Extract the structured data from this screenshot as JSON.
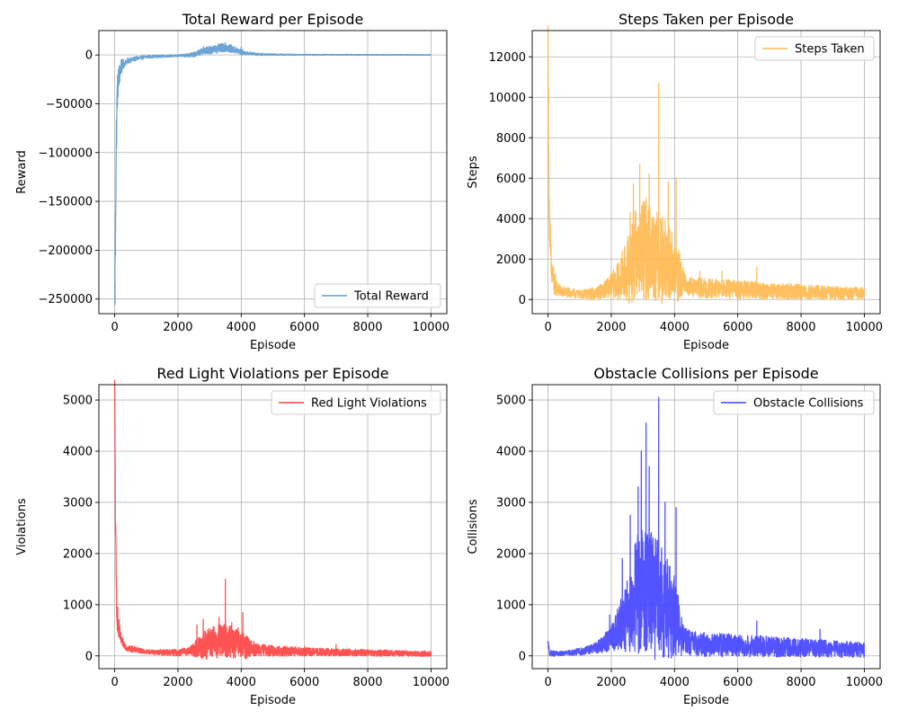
{
  "chart_data": [
    {
      "type": "line",
      "title": "Total Reward per Episode",
      "xlabel": "Episode",
      "ylabel": "Reward",
      "xlim": [
        -500,
        10500
      ],
      "ylim": [
        -265000,
        25000
      ],
      "xticks": [
        0,
        2000,
        4000,
        6000,
        8000,
        10000
      ],
      "xtick_labels": [
        "0",
        "2000",
        "4000",
        "6000",
        "8000",
        "10000"
      ],
      "yticks": [
        0,
        -50000,
        -100000,
        -150000,
        -200000,
        -250000
      ],
      "ytick_labels": [
        "0",
        "−50000",
        "−100000",
        "−150000",
        "−200000",
        "−250000"
      ],
      "grid": true,
      "legend_position": "lower-right",
      "series": [
        {
          "name": "Total Reward",
          "color": "#5b9bd0",
          "profile": {
            "points": [
              [
                0,
                -250000
              ],
              [
                15,
                -200000
              ],
              [
                30,
                -150000
              ],
              [
                50,
                -90000
              ],
              [
                80,
                -40000
              ],
              [
                120,
                -25000
              ],
              [
                200,
                -12000
              ],
              [
                400,
                -6000
              ],
              [
                700,
                -3500
              ],
              [
                1000,
                -2000
              ],
              [
                1500,
                -1200
              ],
              [
                2000,
                -800
              ],
              [
                2500,
                200
              ],
              [
                2800,
                4000
              ],
              [
                3000,
                5000
              ],
              [
                3200,
                6000
              ],
              [
                3500,
                8000
              ],
              [
                3800,
                5000
              ],
              [
                4100,
                2000
              ],
              [
                4500,
                800
              ],
              [
                5000,
                400
              ],
              [
                6000,
                200
              ],
              [
                7000,
                150
              ],
              [
                8000,
                100
              ],
              [
                9000,
                80
              ],
              [
                10000,
                50
              ]
            ],
            "noise_amplitude": [
              [
                0,
                40000
              ],
              [
                100,
                15000
              ],
              [
                300,
                3000
              ],
              [
                1000,
                1500
              ],
              [
                2000,
                1000
              ],
              [
                2500,
                2500
              ],
              [
                3000,
                4000
              ],
              [
                3500,
                4500
              ],
              [
                4000,
                3000
              ],
              [
                4200,
                1500
              ],
              [
                5000,
                800
              ],
              [
                6000,
                500
              ],
              [
                10000,
                400
              ]
            ],
            "spikes": [
              [
                3500,
                12000
              ],
              [
                3000,
                9000
              ],
              [
                2800,
                8500
              ],
              [
                4000,
                8000
              ],
              [
                10,
                -255000
              ],
              [
                25,
                -205000
              ],
              [
                60,
                -75000
              ]
            ]
          }
        }
      ]
    },
    {
      "type": "line",
      "title": "Steps Taken per Episode",
      "xlabel": "Episode",
      "ylabel": "Steps",
      "xlim": [
        -500,
        10500
      ],
      "ylim": [
        -700,
        13300
      ],
      "xticks": [
        0,
        2000,
        4000,
        6000,
        8000,
        10000
      ],
      "xtick_labels": [
        "0",
        "2000",
        "4000",
        "6000",
        "8000",
        "10000"
      ],
      "yticks": [
        0,
        2000,
        4000,
        6000,
        8000,
        10000,
        12000
      ],
      "ytick_labels": [
        "0",
        "2000",
        "4000",
        "6000",
        "8000",
        "10000",
        "12000"
      ],
      "grid": true,
      "legend_position": "upper-right",
      "series": [
        {
          "name": "Steps Taken",
          "color": "#ffb84d",
          "profile": {
            "points": [
              [
                0,
                12800
              ],
              [
                10,
                10500
              ],
              [
                25,
                6500
              ],
              [
                50,
                3500
              ],
              [
                100,
                1500
              ],
              [
                200,
                700
              ],
              [
                400,
                400
              ],
              [
                1000,
                250
              ],
              [
                1500,
                300
              ],
              [
                1800,
                500
              ],
              [
                2000,
                700
              ],
              [
                2300,
                1000
              ],
              [
                2600,
                1700
              ],
              [
                2800,
                2300
              ],
              [
                3000,
                2500
              ],
              [
                3300,
                2300
              ],
              [
                3600,
                2000
              ],
              [
                4000,
                1600
              ],
              [
                4200,
                1000
              ],
              [
                4500,
                600
              ],
              [
                5000,
                550
              ],
              [
                6000,
                500
              ],
              [
                7000,
                420
              ],
              [
                8000,
                380
              ],
              [
                9000,
                330
              ],
              [
                10000,
                300
              ]
            ],
            "noise_amplitude": [
              [
                0,
                1500
              ],
              [
                300,
                300
              ],
              [
                1000,
                200
              ],
              [
                1800,
                400
              ],
              [
                2300,
                1000
              ],
              [
                2700,
                2200
              ],
              [
                3000,
                2500
              ],
              [
                3600,
                2200
              ],
              [
                4100,
                1500
              ],
              [
                4300,
                500
              ],
              [
                6000,
                450
              ],
              [
                10000,
                300
              ]
            ],
            "spikes": [
              [
                3500,
                10700
              ],
              [
                2900,
                6700
              ],
              [
                3200,
                6200
              ],
              [
                4050,
                6000
              ],
              [
                3800,
                5800
              ],
              [
                2700,
                5700
              ],
              [
                3100,
                5000
              ],
              [
                2600,
                4300
              ],
              [
                2350,
                2400
              ],
              [
                6600,
                1600
              ],
              [
                5500,
                1400
              ],
              [
                4800,
                1400
              ]
            ]
          }
        }
      ]
    },
    {
      "type": "line",
      "title": "Red Light Violations per Episode",
      "xlabel": "Episode",
      "ylabel": "Violations",
      "xlim": [
        -500,
        10500
      ],
      "ylim": [
        -250,
        5300
      ],
      "xticks": [
        0,
        2000,
        4000,
        6000,
        8000,
        10000
      ],
      "xtick_labels": [
        "0",
        "2000",
        "4000",
        "6000",
        "8000",
        "10000"
      ],
      "yticks": [
        0,
        1000,
        2000,
        3000,
        4000,
        5000
      ],
      "ytick_labels": [
        "0",
        "1000",
        "2000",
        "3000",
        "4000",
        "5000"
      ],
      "grid": true,
      "legend_position": "upper-right",
      "series": [
        {
          "name": "Red Light Violations",
          "color": "#ff4040",
          "profile": {
            "points": [
              [
                0,
                5100
              ],
              [
                10,
                4100
              ],
              [
                25,
                2500
              ],
              [
                50,
                1300
              ],
              [
                100,
                600
              ],
              [
                200,
                300
              ],
              [
                400,
                150
              ],
              [
                1000,
                80
              ],
              [
                2000,
                60
              ],
              [
                2500,
                120
              ],
              [
                3000,
                250
              ],
              [
                3500,
                300
              ],
              [
                4000,
                200
              ],
              [
                4500,
                120
              ],
              [
                5000,
                100
              ],
              [
                6000,
                80
              ],
              [
                7000,
                70
              ],
              [
                8000,
                60
              ],
              [
                9000,
                50
              ],
              [
                10000,
                40
              ]
            ],
            "noise_amplitude": [
              [
                0,
                500
              ],
              [
                200,
                80
              ],
              [
                1000,
                40
              ],
              [
                2400,
                80
              ],
              [
                2800,
                300
              ],
              [
                3500,
                350
              ],
              [
                4100,
                250
              ],
              [
                4500,
                120
              ],
              [
                6000,
                80
              ],
              [
                10000,
                50
              ]
            ],
            "spikes": [
              [
                3500,
                1500
              ],
              [
                4050,
                850
              ],
              [
                2800,
                720
              ],
              [
                3300,
                750
              ],
              [
                2600,
                600
              ],
              [
                3700,
                650
              ],
              [
                3900,
                550
              ],
              [
                7000,
                220
              ],
              [
                6000,
                180
              ],
              [
                5200,
                180
              ]
            ]
          }
        }
      ]
    },
    {
      "type": "line",
      "title": "Obstacle Collisions per Episode",
      "xlabel": "Episode",
      "ylabel": "Collisions",
      "xlim": [
        -500,
        10500
      ],
      "ylim": [
        -250,
        5300
      ],
      "xticks": [
        0,
        2000,
        4000,
        6000,
        8000,
        10000
      ],
      "xtick_labels": [
        "0",
        "2000",
        "4000",
        "6000",
        "8000",
        "10000"
      ],
      "yticks": [
        0,
        1000,
        2000,
        3000,
        4000,
        5000
      ],
      "ytick_labels": [
        "0",
        "1000",
        "2000",
        "3000",
        "4000",
        "5000"
      ],
      "grid": true,
      "legend_position": "upper-right",
      "series": [
        {
          "name": "Obstacle Collisions",
          "color": "#4040ff",
          "profile": {
            "points": [
              [
                0,
                250
              ],
              [
                50,
                50
              ],
              [
                300,
                40
              ],
              [
                1000,
                80
              ],
              [
                1500,
                150
              ],
              [
                1800,
                250
              ],
              [
                2000,
                350
              ],
              [
                2300,
                600
              ],
              [
                2600,
                900
              ],
              [
                2800,
                1200
              ],
              [
                3000,
                1300
              ],
              [
                3300,
                1200
              ],
              [
                3600,
                1000
              ],
              [
                4000,
                800
              ],
              [
                4200,
                400
              ],
              [
                4500,
                250
              ],
              [
                5000,
                220
              ],
              [
                6000,
                200
              ],
              [
                7000,
                180
              ],
              [
                8000,
                160
              ],
              [
                9000,
                140
              ],
              [
                10000,
                120
              ]
            ],
            "noise_amplitude": [
              [
                0,
                60
              ],
              [
                500,
                40
              ],
              [
                1500,
                100
              ],
              [
                2000,
                250
              ],
              [
                2400,
                600
              ],
              [
                2800,
                1200
              ],
              [
                3200,
                1300
              ],
              [
                3700,
                1100
              ],
              [
                4100,
                700
              ],
              [
                4300,
                250
              ],
              [
                6000,
                220
              ],
              [
                10000,
                150
              ]
            ],
            "spikes": [
              [
                3500,
                5050
              ],
              [
                3100,
                4550
              ],
              [
                2950,
                4000
              ],
              [
                3200,
                3700
              ],
              [
                4050,
                2900
              ],
              [
                2850,
                3300
              ],
              [
                3700,
                3000
              ],
              [
                2600,
                2750
              ],
              [
                2350,
                1900
              ],
              [
                1950,
                800
              ],
              [
                6600,
                680
              ],
              [
                8600,
                520
              ]
            ]
          }
        }
      ]
    }
  ]
}
